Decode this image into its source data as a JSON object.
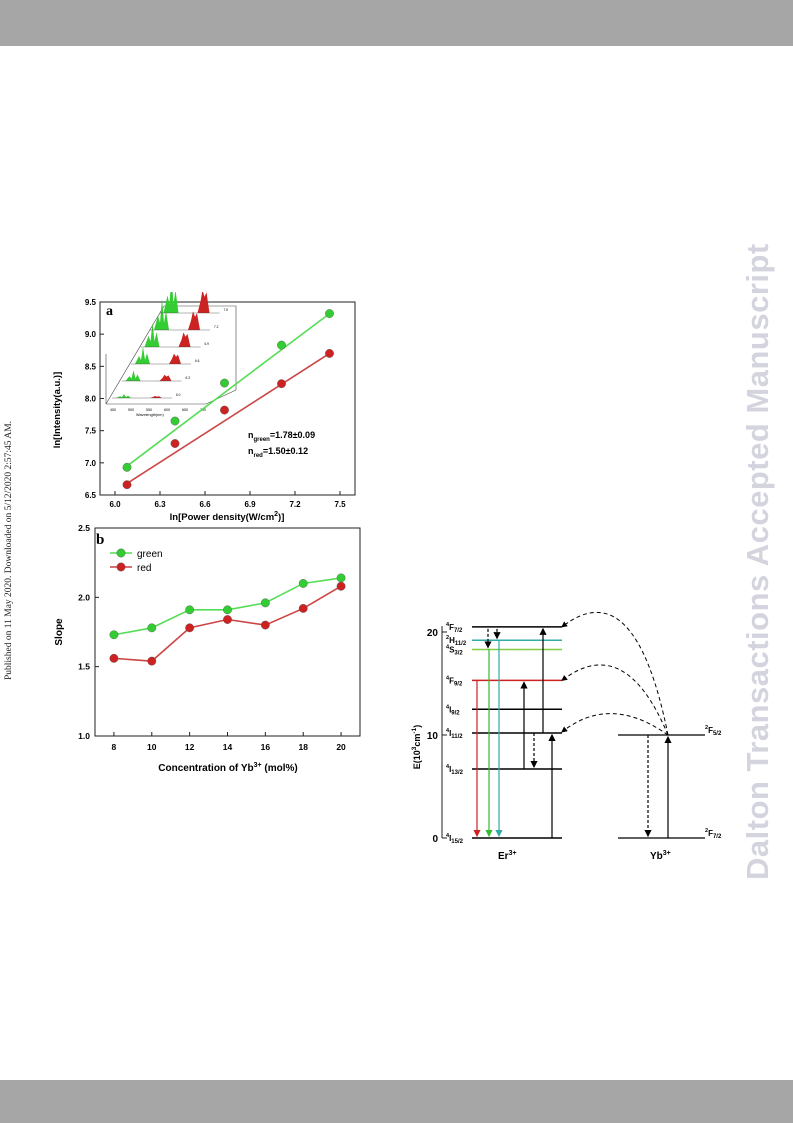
{
  "page": {
    "watermark": "Dalton Transactions Accepted Manuscript",
    "published_note": "Published on 11 May 2020. Downloaded on 5/12/2020 2:57:45 AM."
  },
  "colors": {
    "band": "#a6a6a6",
    "green": "#33cc33",
    "red": "#cc2222",
    "green_line": "#55dd55",
    "red_line": "#cc4444",
    "watermark": "#d4d4df"
  },
  "figure_a": {
    "panel_label": "a",
    "annotation_n_green": "=1.78±0.09",
    "annotation_n_red": "=1.50±0.12",
    "inset_xlabel": "Wavelength(nm)"
  },
  "figure_b": {
    "panel_label": "b"
  },
  "energy_diagram": {
    "er_label": "Er",
    "yb_label": "Yb",
    "ion_sup": "3+",
    "levels": [
      {
        "name": "4F7/2",
        "sup": "4",
        "main": "F",
        "sub": "7/2",
        "energy": 20.5,
        "color": "#000000"
      },
      {
        "name": "2H11/2",
        "sup": "2",
        "main": "H",
        "sub": "11/2",
        "energy": 19.2,
        "color": "#33aaaa"
      },
      {
        "name": "4S3/2",
        "sup": "4",
        "main": "S",
        "sub": "3/2",
        "energy": 18.3,
        "color": "#88cc44"
      },
      {
        "name": "4F9/2",
        "sup": "4",
        "main": "F",
        "sub": "9/2",
        "energy": 15.3,
        "color": "#cc2222"
      },
      {
        "name": "4I9/2",
        "sup": "4",
        "main": "I",
        "sub": "9/2",
        "energy": 12.5,
        "color": "#000000"
      },
      {
        "name": "4I11/2",
        "sup": "4",
        "main": "I",
        "sub": "11/2",
        "energy": 10.2,
        "color": "#000000"
      },
      {
        "name": "4I13/2",
        "sup": "4",
        "main": "I",
        "sub": "13/2",
        "energy": 6.7,
        "color": "#000000"
      },
      {
        "name": "4I15/2",
        "sup": "4",
        "main": "I",
        "sub": "15/2",
        "energy": 0,
        "color": "#000000"
      }
    ],
    "yb_levels": [
      {
        "name": "2F5/2",
        "sup": "2",
        "main": "F",
        "sub": "5/2",
        "energy": 10.0
      },
      {
        "name": "2F7/2",
        "sup": "2",
        "main": "F",
        "sub": "7/2",
        "energy": 0
      }
    ],
    "ylabel": "E(10",
    "ylabel_sup": "3",
    "ylabel_tail": "cm",
    "ylabel_sup2": "-1",
    "ylabel_close": ")",
    "yticks": [
      0,
      10,
      20
    ]
  },
  "chart_data": [
    {
      "type": "scatter",
      "xlabel": "ln[Power density(W/cm",
      "xlabel_sup": "2",
      "xlabel_close": ")]",
      "ylabel": "ln[Intensity(a.u.)]",
      "xlim": [
        5.9,
        7.6
      ],
      "ylim": [
        6.5,
        9.5
      ],
      "xticks": [
        "6.0",
        "6.3",
        "6.6",
        "6.9",
        "7.2",
        "7.5"
      ],
      "yticks": [
        "6.5",
        "7.0",
        "7.5",
        "8.0",
        "8.5",
        "9.0",
        "9.5"
      ],
      "series": [
        {
          "color": "#33cc33",
          "x": [
            6.08,
            6.4,
            6.73,
            7.11,
            7.43
          ],
          "y": [
            6.93,
            7.65,
            8.24,
            8.83,
            9.32
          ],
          "fit": [
            [
              6.08,
              6.95
            ],
            [
              7.43,
              9.32
            ]
          ]
        },
        {
          "color": "#cc2222",
          "x": [
            6.08,
            6.4,
            6.73,
            7.11,
            7.43
          ],
          "y": [
            6.66,
            7.3,
            7.82,
            8.23,
            8.7
          ],
          "fit": [
            [
              6.08,
              6.68
            ],
            [
              7.43,
              8.7
            ]
          ]
        }
      ],
      "inset": {
        "xticks": [
          "450",
          "500",
          "550",
          "600",
          "650",
          "700"
        ],
        "labels": [
          "6.0",
          "6.3",
          "6.6",
          "6.9",
          "7.2",
          "7.5"
        ]
      }
    },
    {
      "type": "line",
      "xlabel": "Concentration of Yb",
      "xlabel_sup": "3+",
      "xlabel_tail": " (mol%)",
      "ylabel": "Slope",
      "xlim": [
        7,
        21
      ],
      "ylim": [
        1.0,
        2.5
      ],
      "categories": [
        8,
        10,
        12,
        14,
        16,
        18,
        20
      ],
      "xticks": [
        "8",
        "10",
        "12",
        "14",
        "16",
        "18",
        "20"
      ],
      "yticks": [
        "1.0",
        "1.5",
        "2.0",
        "2.5"
      ],
      "legend_position": "top-left",
      "series": [
        {
          "name": "green",
          "color": "#33cc33",
          "values": [
            1.73,
            1.78,
            1.91,
            1.91,
            1.96,
            2.1,
            2.14
          ]
        },
        {
          "name": "red",
          "color": "#cc2222",
          "values": [
            1.56,
            1.54,
            1.78,
            1.84,
            1.8,
            1.92,
            2.08
          ]
        }
      ]
    }
  ]
}
